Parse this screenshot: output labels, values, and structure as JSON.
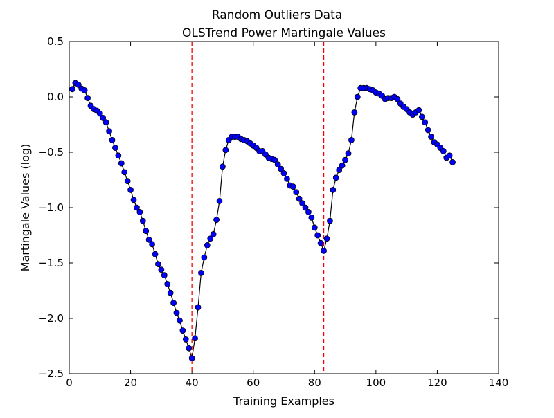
{
  "chart_data": {
    "type": "line",
    "title": "Random Outliers Data",
    "subtitle": "OLSTrend Power Martingale Values",
    "x_label": "Training Examples",
    "y_label": "Martingale Values (log)",
    "xlim": [
      0,
      140
    ],
    "ylim": [
      -2.5,
      0.5
    ],
    "xticks": [
      0,
      20,
      40,
      60,
      80,
      100,
      120,
      140
    ],
    "yticks": [
      {
        "value": -2.5,
        "label": "−2.5"
      },
      {
        "value": -2.0,
        "label": "−2.0"
      },
      {
        "value": -1.5,
        "label": "−1.5"
      },
      {
        "value": -1.0,
        "label": "−1.0"
      },
      {
        "value": -0.5,
        "label": "−0.5"
      },
      {
        "value": 0,
        "label": "0.0"
      },
      {
        "value": 0.5,
        "label": "0.5"
      }
    ],
    "vlines": [
      40,
      83
    ],
    "vline_color": "#ff0000",
    "series": [
      {
        "color": "#0000ff",
        "line_color": "#000000",
        "x": [
          1,
          2,
          3,
          4,
          5,
          6,
          7,
          8,
          9,
          10,
          11,
          12,
          13,
          14,
          15,
          16,
          17,
          18,
          19,
          20,
          21,
          22,
          23,
          24,
          25,
          26,
          27,
          28,
          29,
          30,
          31,
          32,
          33,
          34,
          35,
          36,
          37,
          38,
          39,
          40,
          41,
          42,
          43,
          44,
          45,
          46,
          47,
          48,
          49,
          50,
          51,
          52,
          53,
          54,
          55,
          56,
          57,
          58,
          59,
          60,
          61,
          62,
          63,
          64,
          65,
          66,
          67,
          68,
          69,
          70,
          71,
          72,
          73,
          74,
          75,
          76,
          77,
          78,
          79,
          80,
          81,
          82,
          83,
          84,
          85,
          86,
          87,
          88,
          89,
          90,
          91,
          92,
          93,
          94,
          95,
          96,
          97,
          98,
          99,
          100,
          101,
          102,
          103,
          104,
          105,
          106,
          107,
          108,
          109,
          110,
          111,
          112,
          113,
          114,
          115,
          116,
          117,
          118,
          119,
          120,
          121,
          122,
          123,
          124,
          125
        ],
        "values": [
          0.07,
          0.125,
          0.11,
          0.075,
          0.06,
          -0.01,
          -0.08,
          -0.11,
          -0.125,
          -0.15,
          -0.19,
          -0.23,
          -0.31,
          -0.39,
          -0.46,
          -0.53,
          -0.6,
          -0.68,
          -0.76,
          -0.84,
          -0.93,
          -1.0,
          -1.04,
          -1.12,
          -1.21,
          -1.29,
          -1.33,
          -1.42,
          -1.51,
          -1.56,
          -1.61,
          -1.69,
          -1.77,
          -1.86,
          -1.95,
          -2.02,
          -2.11,
          -2.19,
          -2.27,
          -2.36,
          -2.18,
          -1.9,
          -1.59,
          -1.45,
          -1.34,
          -1.28,
          -1.24,
          -1.11,
          -0.94,
          -0.63,
          -0.48,
          -0.39,
          -0.36,
          -0.36,
          -0.36,
          -0.38,
          -0.39,
          -0.4,
          -0.42,
          -0.44,
          -0.46,
          -0.49,
          -0.49,
          -0.52,
          -0.55,
          -0.56,
          -0.57,
          -0.61,
          -0.65,
          -0.69,
          -0.74,
          -0.8,
          -0.81,
          -0.86,
          -0.92,
          -0.96,
          -1.0,
          -1.04,
          -1.09,
          -1.18,
          -1.25,
          -1.32,
          -1.39,
          -1.28,
          -1.12,
          -0.84,
          -0.73,
          -0.66,
          -0.62,
          -0.57,
          -0.51,
          -0.39,
          -0.14,
          0.0,
          0.08,
          0.08,
          0.08,
          0.07,
          0.06,
          0.04,
          0.03,
          0.01,
          -0.02,
          -0.01,
          -0.01,
          0.0,
          -0.02,
          -0.06,
          -0.09,
          -0.11,
          -0.14,
          -0.16,
          -0.14,
          -0.12,
          -0.18,
          -0.23,
          -0.3,
          -0.36,
          -0.41,
          -0.43,
          -0.46,
          -0.49,
          -0.55,
          -0.53,
          -0.59
        ]
      }
    ]
  }
}
